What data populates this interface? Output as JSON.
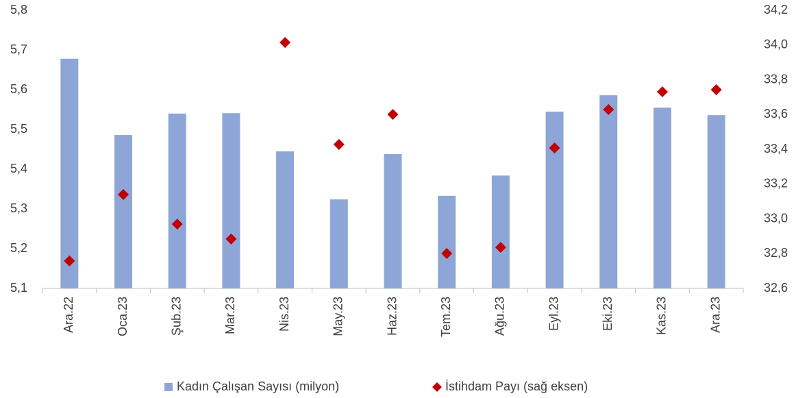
{
  "chart_data": {
    "type": "bar",
    "categories": [
      "Ara.22",
      "Oca.23",
      "Şub.23",
      "Mar.23",
      "Nis.23",
      "May.23",
      "Haz.23",
      "Tem.23",
      "Ağu.23",
      "Eyl.23",
      "Eki.23",
      "Kas.23",
      "Ara.23"
    ],
    "series": [
      {
        "name": "Kadın Çalışan Sayısı (milyon)",
        "type": "bar",
        "color": "#8ea6d7",
        "values": [
          5.678,
          5.486,
          5.54,
          5.541,
          5.445,
          5.324,
          5.438,
          5.333,
          5.384,
          5.545,
          5.586,
          5.555,
          5.536
        ]
      },
      {
        "name": "İstihdam Payı (sağ eksen)",
        "type": "scatter",
        "axis": "y2",
        "color": "#c00000",
        "values": [
          32.758,
          33.14,
          32.97,
          32.884,
          34.015,
          33.428,
          33.601,
          32.801,
          32.836,
          33.408,
          33.629,
          33.731,
          33.743
        ]
      }
    ],
    "ylim": [
      5.1,
      5.8
    ],
    "yticks": [
      {
        "value": 5.1,
        "label": "5,1"
      },
      {
        "value": 5.2,
        "label": "5,2"
      },
      {
        "value": 5.3,
        "label": "5,3"
      },
      {
        "value": 5.4,
        "label": "5,4"
      },
      {
        "value": 5.5,
        "label": "5,5"
      },
      {
        "value": 5.6,
        "label": "5,6"
      },
      {
        "value": 5.7,
        "label": "5,7"
      },
      {
        "value": 5.8,
        "label": "5,8"
      }
    ],
    "y2lim": [
      32.6,
      34.2
    ],
    "y2ticks": [
      {
        "value": 32.6,
        "label": "32,6"
      },
      {
        "value": 32.8,
        "label": "32,8"
      },
      {
        "value": 33.0,
        "label": "33,0"
      },
      {
        "value": 33.2,
        "label": "33,2"
      },
      {
        "value": 33.4,
        "label": "33,4"
      },
      {
        "value": 33.6,
        "label": "33,6"
      },
      {
        "value": 33.8,
        "label": "33,8"
      },
      {
        "value": 34.0,
        "label": "34,0"
      },
      {
        "value": 34.2,
        "label": "34,2"
      }
    ],
    "legend": "bottom"
  }
}
